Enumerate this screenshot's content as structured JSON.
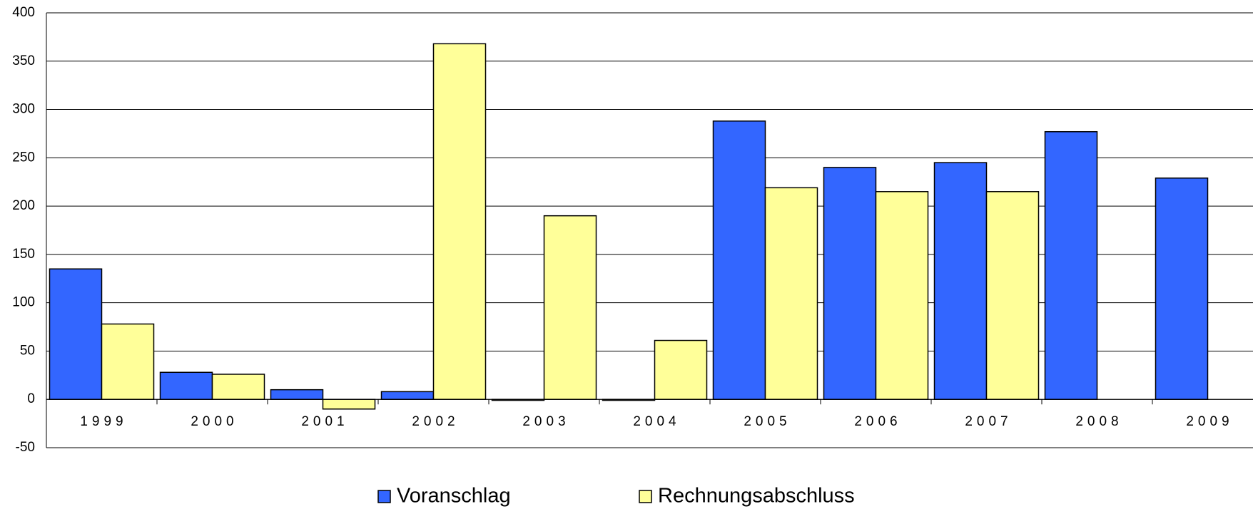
{
  "chart_data": {
    "type": "bar",
    "categories": [
      "1999",
      "2000",
      "2001",
      "2002",
      "2003",
      "2004",
      "2005",
      "2006",
      "2007",
      "2008",
      "2009"
    ],
    "series": [
      {
        "name": "Voranschlag",
        "color": "#3366ff",
        "values": [
          135,
          28,
          10,
          8,
          -1,
          -1,
          288,
          240,
          245,
          277,
          229
        ]
      },
      {
        "name": "Rechnungsabschluss",
        "color": "#ffff99",
        "values": [
          78,
          26,
          -10,
          368,
          190,
          61,
          219,
          215,
          215,
          null,
          null
        ]
      }
    ],
    "ylim": [
      -50,
      400
    ],
    "yticks": [
      -50,
      0,
      50,
      100,
      150,
      200,
      250,
      300,
      350,
      400
    ],
    "grid": true,
    "legend": "bottom"
  }
}
